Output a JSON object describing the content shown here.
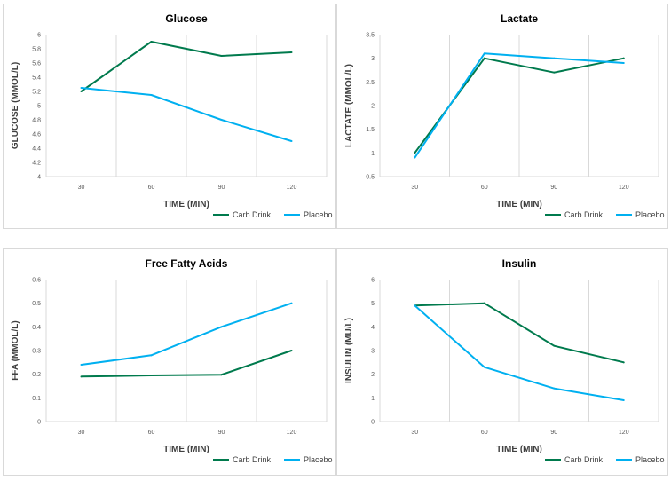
{
  "colors": {
    "carb": "#007a4d",
    "placebo": "#00b0f0",
    "grid": "#d9d9d9"
  },
  "chart_data": [
    {
      "type": "line",
      "title": "Glucose",
      "xlabel": "TIME (MIN)",
      "ylabel": "GLUCOSE (MMOL/L)",
      "categories": [
        "30",
        "60",
        "90",
        "120"
      ],
      "ylim": [
        4,
        6
      ],
      "yticks": [
        "4",
        "4.2",
        "4.4",
        "4.6",
        "4.8",
        "5",
        "5.2",
        "5.4",
        "5.6",
        "5.8",
        "6"
      ],
      "series": [
        {
          "name": "Carb Drink",
          "values": [
            5.2,
            5.9,
            5.7,
            5.75
          ]
        },
        {
          "name": "Placebo",
          "values": [
            5.25,
            5.15,
            4.8,
            4.5
          ]
        }
      ],
      "grid": "vertical",
      "legend": "bottom-right"
    },
    {
      "type": "line",
      "title": "Lactate",
      "xlabel": "TIME (MIN)",
      "ylabel": "LACTATE (MMOL/L)",
      "categories": [
        "30",
        "60",
        "90",
        "120"
      ],
      "ylim": [
        0.5,
        3.5
      ],
      "yticks": [
        "0.5",
        "1",
        "1.5",
        "2",
        "2.5",
        "3",
        "3.5"
      ],
      "series": [
        {
          "name": "Carb Drink",
          "values": [
            1.0,
            3.0,
            2.7,
            3.0
          ]
        },
        {
          "name": "Placebo",
          "values": [
            0.9,
            3.1,
            3.0,
            2.9
          ]
        }
      ],
      "grid": "vertical",
      "legend": "bottom-right"
    },
    {
      "type": "line",
      "title": "Free Fatty Acids",
      "xlabel": "TIME (MIN)",
      "ylabel": "FFA (MMOL/L)",
      "categories": [
        "30",
        "60",
        "90",
        "120"
      ],
      "ylim": [
        0,
        0.6
      ],
      "yticks": [
        "0",
        "0.1",
        "0.2",
        "0.3",
        "0.4",
        "0.5",
        "0.6"
      ],
      "series": [
        {
          "name": "Carb Drink",
          "values": [
            0.19,
            0.195,
            0.198,
            0.3
          ]
        },
        {
          "name": "Placebo",
          "values": [
            0.24,
            0.28,
            0.4,
            0.5
          ]
        }
      ],
      "grid": "vertical",
      "legend": "bottom-right"
    },
    {
      "type": "line",
      "title": "Insulin",
      "xlabel": "TIME (MIN)",
      "ylabel": "INSULIN (MU/L)",
      "categories": [
        "30",
        "60",
        "90",
        "120"
      ],
      "ylim": [
        0,
        6
      ],
      "yticks": [
        "0",
        "1",
        "2",
        "3",
        "4",
        "5",
        "6"
      ],
      "series": [
        {
          "name": "Carb Drink",
          "values": [
            4.9,
            5.0,
            3.2,
            2.5
          ]
        },
        {
          "name": "Placebo",
          "values": [
            4.9,
            2.3,
            1.4,
            0.9
          ]
        }
      ],
      "grid": "vertical",
      "legend": "bottom-right"
    }
  ]
}
